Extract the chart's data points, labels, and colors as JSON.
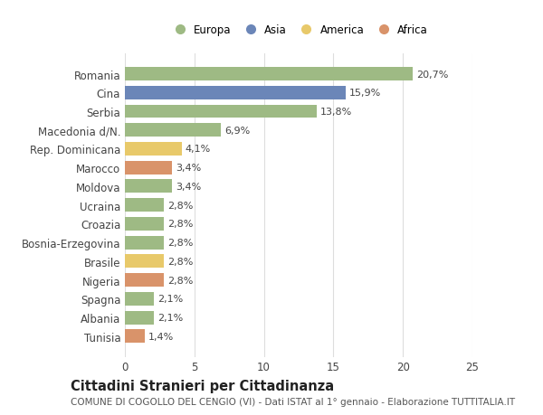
{
  "categories": [
    "Romania",
    "Cina",
    "Serbia",
    "Macedonia d/N.",
    "Rep. Dominicana",
    "Marocco",
    "Moldova",
    "Ucraina",
    "Croazia",
    "Bosnia-Erzegovina",
    "Brasile",
    "Nigeria",
    "Spagna",
    "Albania",
    "Tunisia"
  ],
  "values": [
    20.7,
    15.9,
    13.8,
    6.9,
    4.1,
    3.4,
    3.4,
    2.8,
    2.8,
    2.8,
    2.8,
    2.8,
    2.1,
    2.1,
    1.4
  ],
  "labels": [
    "20,7%",
    "15,9%",
    "13,8%",
    "6,9%",
    "4,1%",
    "3,4%",
    "3,4%",
    "2,8%",
    "2,8%",
    "2,8%",
    "2,8%",
    "2,8%",
    "2,1%",
    "2,1%",
    "1,4%"
  ],
  "continents": [
    "Europa",
    "Asia",
    "Europa",
    "Europa",
    "America",
    "Africa",
    "Europa",
    "Europa",
    "Europa",
    "Europa",
    "America",
    "Africa",
    "Europa",
    "Europa",
    "Africa"
  ],
  "colors": {
    "Europa": "#9eba84",
    "Asia": "#6b86b8",
    "America": "#e8c96a",
    "Africa": "#d9936a"
  },
  "legend_order": [
    "Europa",
    "Asia",
    "America",
    "Africa"
  ],
  "title1": "Cittadini Stranieri per Cittadinanza",
  "title2": "COMUNE DI COGOLLO DEL CENGIO (VI) - Dati ISTAT al 1° gennaio - Elaborazione TUTTITALIA.IT",
  "xlim": [
    0,
    25
  ],
  "xticks": [
    0,
    5,
    10,
    15,
    20,
    25
  ],
  "background_color": "#ffffff",
  "grid_color": "#dddddd",
  "bar_height": 0.72,
  "label_fontsize": 8.0,
  "tick_fontsize": 8.5,
  "ylabel_fontsize": 8.5,
  "title1_fontsize": 10.5,
  "title2_fontsize": 7.5
}
